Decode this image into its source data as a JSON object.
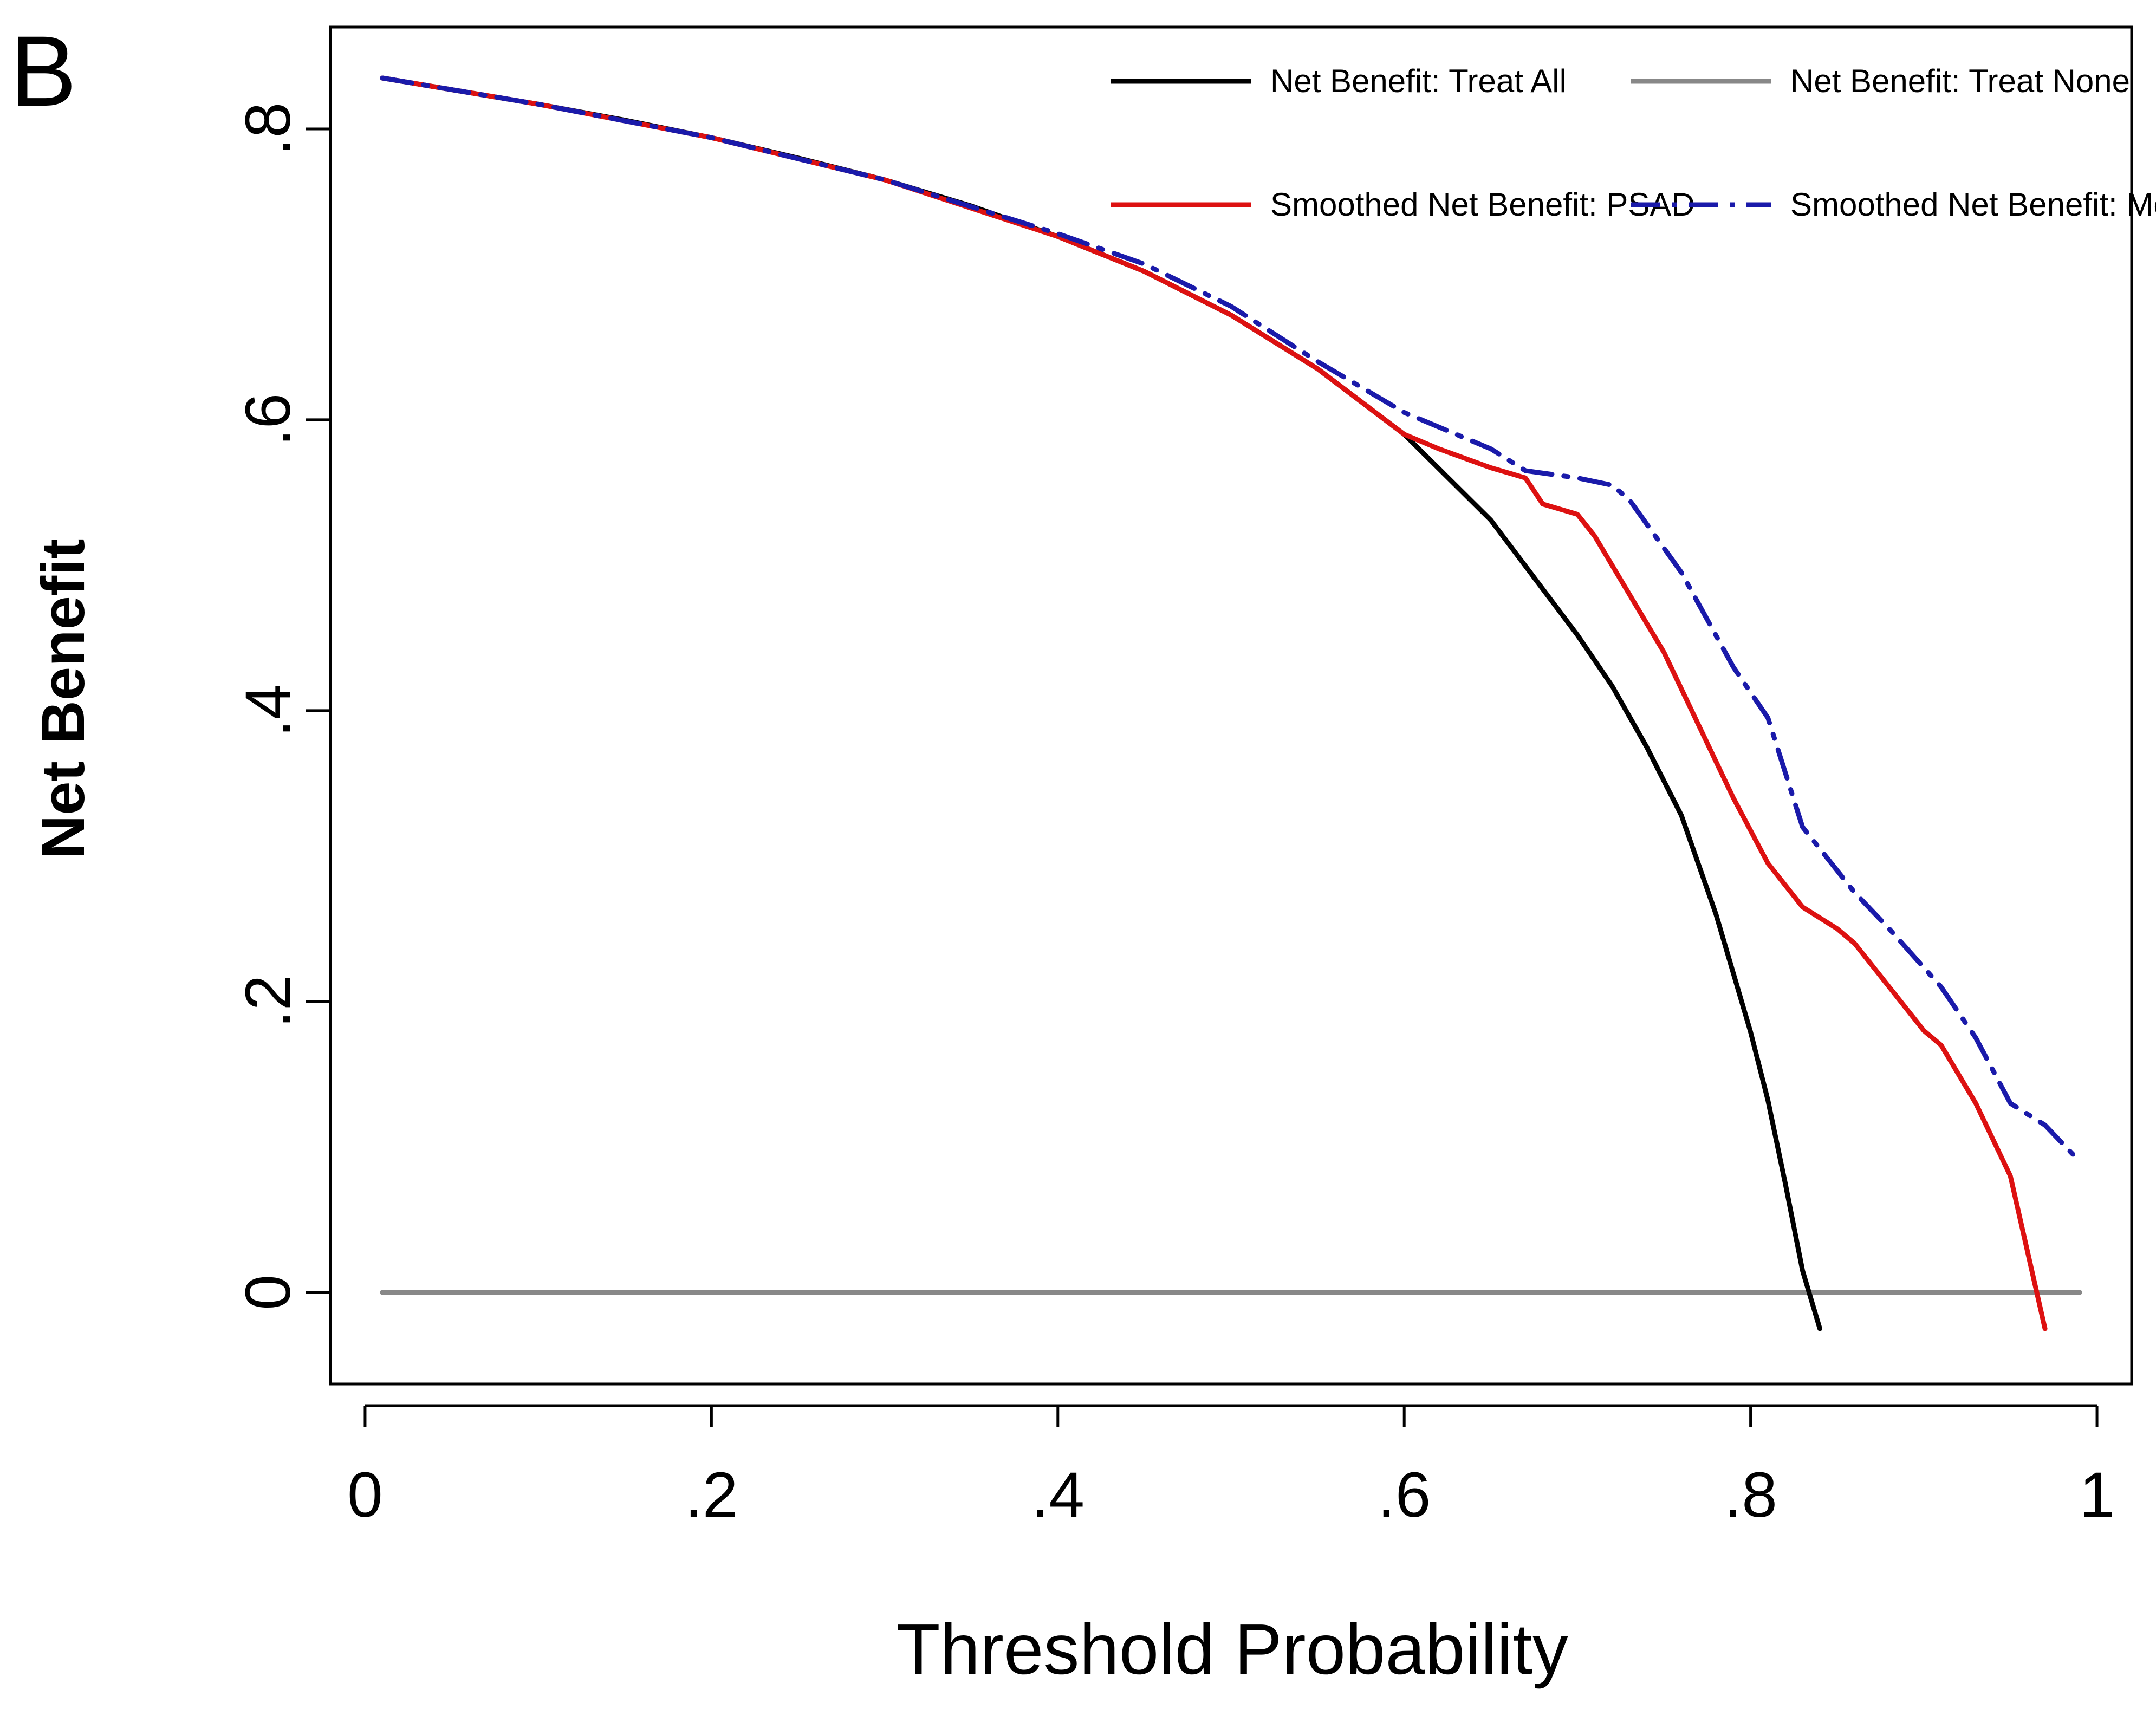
{
  "panel_label": "B",
  "chart_data": {
    "type": "line",
    "title": "",
    "xlabel": "Threshold Probability",
    "ylabel": "Net Benefit",
    "xlim": [
      -0.02,
      1.02
    ],
    "ylim": [
      -0.063,
      0.87
    ],
    "x_ticks": [
      0,
      0.2,
      0.4,
      0.6,
      0.8,
      1
    ],
    "x_tick_labels": [
      "0",
      ".2",
      ".4",
      ".6",
      ".8",
      "1"
    ],
    "y_ticks": [
      0,
      0.2,
      0.4,
      0.6,
      0.8
    ],
    "y_tick_labels": [
      "0",
      ".2",
      ".4",
      ".6",
      ".8"
    ],
    "grid": false,
    "legend_position": "top-right",
    "series": [
      {
        "name": "Net Benefit: Treat All",
        "color": "#000000",
        "style": "solid",
        "x": [
          0.01,
          0.05,
          0.1,
          0.15,
          0.2,
          0.25,
          0.3,
          0.35,
          0.4,
          0.45,
          0.5,
          0.55,
          0.6,
          0.65,
          0.7,
          0.72,
          0.74,
          0.76,
          0.78,
          0.8,
          0.81,
          0.82,
          0.83,
          0.84
        ],
        "y": [
          0.835,
          0.827,
          0.817,
          0.806,
          0.794,
          0.78,
          0.765,
          0.747,
          0.726,
          0.702,
          0.672,
          0.635,
          0.59,
          0.531,
          0.452,
          0.417,
          0.375,
          0.328,
          0.26,
          0.179,
          0.132,
          0.075,
          0.015,
          -0.025
        ]
      },
      {
        "name": "Net Benefit: Treat None",
        "color": "#888888",
        "style": "solid",
        "x": [
          0.01,
          0.99
        ],
        "y": [
          0,
          0
        ]
      },
      {
        "name": "Smoothed Net Benefit: PSAD",
        "color": "#dd1111",
        "style": "solid",
        "x": [
          0.01,
          0.1,
          0.2,
          0.3,
          0.4,
          0.45,
          0.5,
          0.55,
          0.6,
          0.62,
          0.65,
          0.67,
          0.68,
          0.7,
          0.71,
          0.73,
          0.75,
          0.77,
          0.79,
          0.81,
          0.83,
          0.85,
          0.86,
          0.88,
          0.9,
          0.91,
          0.93,
          0.95,
          0.97
        ],
        "y": [
          0.835,
          0.817,
          0.794,
          0.765,
          0.726,
          0.702,
          0.672,
          0.635,
          0.59,
          0.58,
          0.567,
          0.56,
          0.542,
          0.535,
          0.52,
          0.48,
          0.44,
          0.39,
          0.34,
          0.295,
          0.265,
          0.25,
          0.24,
          0.21,
          0.18,
          0.17,
          0.13,
          0.08,
          -0.025
        ]
      },
      {
        "name": "Smoothed Net Benefit: Model",
        "color": "#1a1aaa",
        "style": "dash-dot",
        "x": [
          0.01,
          0.1,
          0.2,
          0.3,
          0.4,
          0.45,
          0.5,
          0.55,
          0.6,
          0.63,
          0.65,
          0.67,
          0.7,
          0.72,
          0.73,
          0.76,
          0.79,
          0.81,
          0.83,
          0.86,
          0.88,
          0.91,
          0.93,
          0.95,
          0.97,
          0.99
        ],
        "y": [
          0.835,
          0.817,
          0.794,
          0.765,
          0.728,
          0.707,
          0.678,
          0.64,
          0.605,
          0.59,
          0.58,
          0.565,
          0.56,
          0.555,
          0.545,
          0.495,
          0.43,
          0.395,
          0.32,
          0.275,
          0.25,
          0.21,
          0.175,
          0.13,
          0.115,
          0.09
        ]
      }
    ]
  }
}
